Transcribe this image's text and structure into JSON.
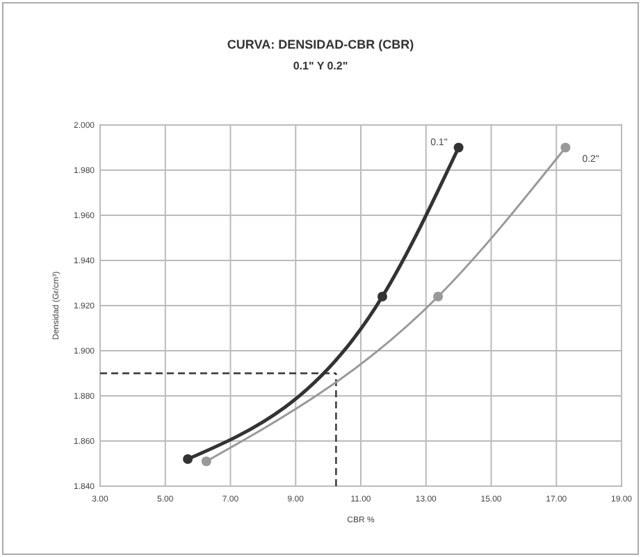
{
  "chart_data": {
    "type": "line",
    "title": "CURVA:  DENSIDAD-CBR (CBR)",
    "subtitle": "0.1\" Y 0.2\"",
    "xlabel": "CBR %",
    "ylabel": "Densidad (Gr/cm³)",
    "series": [
      {
        "name": "0.1\"",
        "color": "#333333",
        "x": [
          5.69,
          11.66,
          14.0
        ],
        "values": [
          1.852,
          1.924,
          1.99
        ]
      },
      {
        "name": "0.2\"",
        "color": "#999999",
        "x": [
          6.26,
          13.37,
          17.28
        ],
        "values": [
          1.851,
          1.924,
          1.99
        ]
      }
    ],
    "xlim": [
      3,
      19
    ],
    "xticks": [
      {
        "value": 3,
        "label": "3.00"
      },
      {
        "value": 5,
        "label": "5.00"
      },
      {
        "value": 7,
        "label": "7.00"
      },
      {
        "value": 9,
        "label": "9.00"
      },
      {
        "value": 11,
        "label": "11.00"
      },
      {
        "value": 13,
        "label": "13.00"
      },
      {
        "value": 15,
        "label": "15.00"
      },
      {
        "value": 17,
        "label": "17.00"
      },
      {
        "value": 19,
        "label": "19.00"
      }
    ],
    "ylim": [
      1.84,
      2.0
    ],
    "yticks": [
      {
        "value": 1.84,
        "label": "1.840"
      },
      {
        "value": 1.86,
        "label": "1.860"
      },
      {
        "value": 1.88,
        "label": "1.880"
      },
      {
        "value": 1.9,
        "label": "1.900"
      },
      {
        "value": 1.92,
        "label": "1.920"
      },
      {
        "value": 1.94,
        "label": "1.940"
      },
      {
        "value": 1.96,
        "label": "1.960"
      },
      {
        "value": 1.98,
        "label": "1.980"
      },
      {
        "value": 2.0,
        "label": "2.000"
      }
    ],
    "ref_lines": [
      {
        "axis": "y",
        "value": 1.89,
        "label": null,
        "color": "#333333",
        "line_style": "dashed"
      },
      {
        "axis": "x",
        "value": 10.24,
        "label": null,
        "color": "#333333",
        "line_style": "dashed"
      }
    ],
    "grid": true,
    "marker": "circle",
    "line_style": "solid"
  }
}
